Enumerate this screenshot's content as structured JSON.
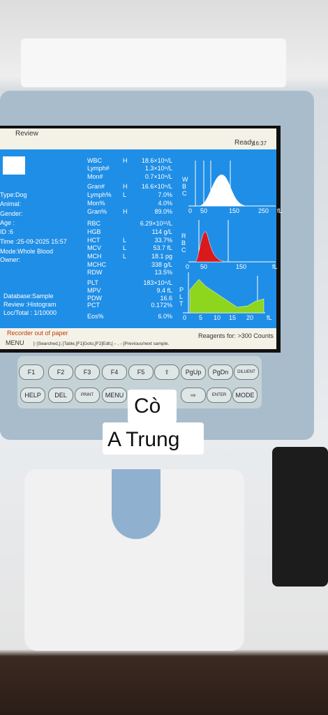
{
  "header": {
    "mode": "Review",
    "status": "Ready",
    "time": "16:37"
  },
  "patient": [
    "Type:Dog",
    "Animal:",
    "Gender:",
    "Age  :",
    "ID    :6",
    "Time :25-09-2025 15:57",
    "Mode:Whole Blood",
    "Owner:"
  ],
  "database": [
    "Database:Sample",
    "Review   :Histogram",
    "Loc/Total : 1/10000"
  ],
  "params": [
    {
      "name": "WBC",
      "flag": "H",
      "value": "18.6×10⁹/L"
    },
    {
      "name": "Lymph#",
      "value": "1.3×10⁹/L"
    },
    {
      "name": "Mon#",
      "value": "0.7×10⁹/L"
    },
    {
      "name": "Gran#",
      "flag": "H",
      "value": "16.6×10⁹/L"
    },
    {
      "name": "Lymph%",
      "flag": "L",
      "value": "7.0%"
    },
    {
      "name": "Mon%",
      "value": "4.0%"
    },
    {
      "name": "Gran%",
      "flag": "H",
      "value": "89.0%"
    },
    {
      "name": "RBC",
      "value": "6.29×10¹²/L"
    },
    {
      "name": "HGB",
      "value": "114 g/L"
    },
    {
      "name": "HCT",
      "flag": "L",
      "value": "33.7%"
    },
    {
      "name": "MCV",
      "flag": "L",
      "value": "53.7 fL"
    },
    {
      "name": "MCH",
      "flag": "L",
      "value": "18.1 pg"
    },
    {
      "name": "MCHC",
      "value": "338 g/L"
    },
    {
      "name": "RDW",
      "value": "13.5%"
    },
    {
      "name": "PLT",
      "value": "183×10⁹/L"
    },
    {
      "name": "MPV",
      "value": "9.4 fL"
    },
    {
      "name": "PDW",
      "value": "16.6"
    },
    {
      "name": "PCT",
      "value": "0.172%"
    },
    {
      "name": "Eos%",
      "value": "6.0%"
    }
  ],
  "histograms": [
    {
      "letters": [
        "W",
        "B",
        "C"
      ],
      "axis": [
        "0",
        "50",
        "150",
        "250",
        "fL"
      ]
    },
    {
      "letters": [
        "R",
        "B",
        "C"
      ],
      "axis": [
        "0",
        "50",
        "150",
        "fL"
      ]
    },
    {
      "letters": [
        "P",
        "L",
        "T"
      ],
      "axis": [
        "0",
        "5",
        "10",
        "15",
        "20",
        "fL"
      ]
    }
  ],
  "footer": {
    "warning": "Recorder out of paper",
    "reagents": "Reagents for: >300 Counts",
    "menu": "MENU",
    "help": "[↑]Searched,[↓]Table,[F1]Goto,[F2]Edit,[←,→]Previous/next sample."
  },
  "keys": [
    [
      "F1",
      "F2",
      "F3",
      "F4",
      "F5",
      "⇧",
      "PgUp",
      "PgDn",
      "DILUENT"
    ],
    [
      "HELP",
      "DEL",
      "PRINT",
      "MENU",
      "⇨",
      "ENTER",
      "MODE"
    ]
  ],
  "caption": [
    "Cò",
    "A Trung"
  ]
}
